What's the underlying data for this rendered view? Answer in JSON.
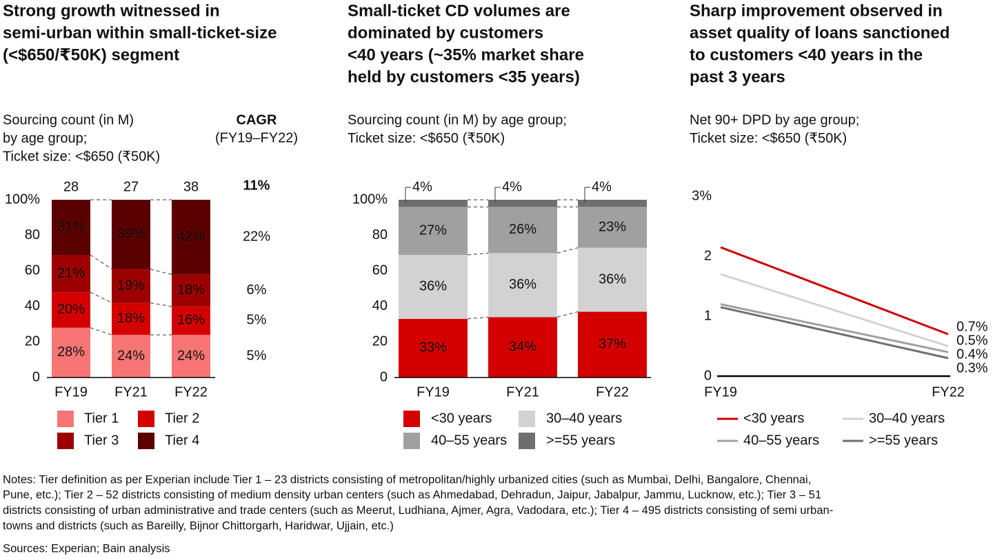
{
  "chart_data": [
    {
      "type": "bar",
      "title": [
        "Strong growth witnessed in",
        "semi-urban within small-ticket-size",
        "(<$650/₹50K) segment"
      ],
      "subtitle": [
        "Sourcing count (in M)",
        "by age group;",
        "Ticket size: <$650 (₹50K)"
      ],
      "categories": [
        "FY19",
        "FY21",
        "FY22"
      ],
      "ylim": [
        0,
        100
      ],
      "yticks": [
        0,
        20,
        40,
        60,
        80,
        {
          "value": 100,
          "label": "100%"
        }
      ],
      "totals": [
        28,
        27,
        38
      ],
      "cagr_header": "CAGR",
      "cagr_period": "(FY19–FY22)",
      "total_cagr": 11,
      "total_cagr_label": "11%",
      "series": [
        {
          "name": "Tier 1",
          "color": "#f87575",
          "values": [
            28,
            24,
            24
          ],
          "value_labels": [
            "28%",
            "24%",
            "24%"
          ],
          "cagr": 5,
          "cagr_label": "5%"
        },
        {
          "name": "Tier 2",
          "color": "#d40000",
          "values": [
            20,
            18,
            16
          ],
          "value_labels": [
            "20%",
            "18%",
            "16%"
          ],
          "cagr": 5,
          "cagr_label": "5%"
        },
        {
          "name": "Tier 3",
          "color": "#9c0000",
          "values": [
            21,
            19,
            18
          ],
          "value_labels": [
            "21%",
            "19%",
            "18%"
          ],
          "cagr": 6,
          "cagr_label": "6%"
        },
        {
          "name": "Tier 4",
          "color": "#5a0000",
          "values": [
            31,
            39,
            42
          ],
          "value_labels": [
            "31%",
            "39%",
            "42%"
          ],
          "cagr": 22,
          "cagr_label": "22%"
        }
      ]
    },
    {
      "type": "bar",
      "title": [
        "Small-ticket CD volumes are",
        "dominated by customers",
        "<40 years (~35% market share",
        "held by customers <35 years)"
      ],
      "subtitle": [
        "Sourcing count (in M) by age group;",
        "Ticket size: <$650 (₹50K)"
      ],
      "categories": [
        "FY19",
        "FY21",
        "FY22"
      ],
      "ylim": [
        0,
        100
      ],
      "yticks": [
        0,
        20,
        40,
        60,
        80,
        {
          "value": 100,
          "label": "100%"
        }
      ],
      "series": [
        {
          "name": "<30 years",
          "color": "#d40000",
          "values": [
            33,
            34,
            37
          ],
          "value_labels": [
            "33%",
            "34%",
            "37%"
          ]
        },
        {
          "name": "30–40 years",
          "color": "#d2d2d2",
          "values": [
            36,
            36,
            36
          ],
          "value_labels": [
            "36%",
            "36%",
            "36%"
          ]
        },
        {
          "name": "40–55 years",
          "color": "#a0a0a0",
          "values": [
            27,
            26,
            23
          ],
          "value_labels": [
            "27%",
            "26%",
            "23%"
          ]
        },
        {
          "name": ">=55 years",
          "color": "#6e6e6e",
          "values": [
            4,
            4,
            4
          ],
          "value_labels": [
            "4%",
            "4%",
            "4%"
          ]
        }
      ]
    },
    {
      "type": "line",
      "title": [
        "Sharp improvement observed in",
        "asset quality of loans sanctioned",
        "to customers <40 years in the",
        "past 3 years"
      ],
      "subtitle": [
        "Net 90+ DPD by age group;",
        "Ticket size: <$650 (₹50K)"
      ],
      "categories": [
        "FY19",
        "FY22"
      ],
      "ylim": [
        0,
        3
      ],
      "yticks": [
        0,
        1,
        2,
        {
          "value": 3,
          "label": "3%"
        }
      ],
      "series": [
        {
          "name": "<30 years",
          "color": "#cc0000",
          "values": [
            2.15,
            0.7
          ],
          "value_labels": [
            null,
            "0.7%"
          ]
        },
        {
          "name": "30–40 years",
          "color": "#d2d2d2",
          "values": [
            1.7,
            0.5
          ],
          "value_labels": [
            null,
            "0.5%"
          ]
        },
        {
          "name": "40–55 years",
          "color": "#a0a0a0",
          "values": [
            1.2,
            0.4
          ],
          "value_labels": [
            null,
            "0.4%"
          ]
        },
        {
          "name": ">=55 years",
          "color": "#6e6e6e",
          "values": [
            1.15,
            0.3
          ],
          "value_labels": [
            null,
            "0.3%"
          ]
        }
      ]
    }
  ],
  "notes": [
    "Notes: Tier definition as per Experian include Tier 1 – 23 districts consisting of metropolitan/highly urbanized cities (such as Mumbai, Delhi, Bangalore, Chennai,",
    "Pune, etc.); Tier 2 – 52 districts consisting of medium density urban centers (such as Ahmedabad, Dehradun, Jaipur, Jabalpur, Jammu, Lucknow, etc.); Tier 3 – 51",
    "districts consisting of urban administrative and trade centers (such as Meerut, Ludhiana, Ajmer, Agra, Vadodara, etc.); Tier 4 – 495 districts consisting of semi urban-",
    "towns and districts (such as Bareilly, Bijnor Chittorgarh, Haridwar, Ujjain, etc.)"
  ],
  "sources": "Sources: Experian; Bain analysis"
}
